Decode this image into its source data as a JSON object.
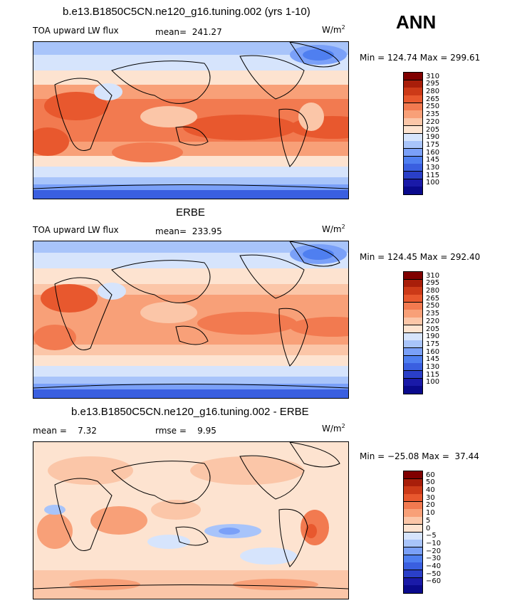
{
  "season": "ANN",
  "panels": [
    {
      "title": "b.e13.B1850C5CN.ne120_g16.tuning.002 (yrs 1-10)",
      "left_label": "TOA upward LW flux",
      "stat1": "mean=  241.27",
      "stat2": "",
      "units": "W/m",
      "units_sup": "2",
      "minmax": "Min = 124.74 Max = 299.61",
      "colorbar_ticks": [
        "310",
        "295",
        "280",
        "265",
        "250",
        "235",
        "220",
        "205",
        "190",
        "175",
        "160",
        "145",
        "130",
        "115",
        "100"
      ]
    },
    {
      "title": "ERBE",
      "left_label": "TOA upward LW flux",
      "stat1": "mean=  233.95",
      "stat2": "",
      "units": "W/m",
      "units_sup": "2",
      "minmax": "Min = 124.45 Max = 292.40",
      "colorbar_ticks": [
        "310",
        "295",
        "280",
        "265",
        "250",
        "235",
        "220",
        "205",
        "190",
        "175",
        "160",
        "145",
        "130",
        "115",
        "100"
      ]
    },
    {
      "title": "b.e13.B1850C5CN.ne120_g16.tuning.002 - ERBE",
      "left_label": "mean =    7.32",
      "stat1": "rmse =    9.95",
      "stat2": "",
      "units": "W/m",
      "units_sup": "2",
      "minmax": "Min = −25.08 Max =  37.44",
      "colorbar_ticks": [
        "60",
        "50",
        "40",
        "30",
        "20",
        "10",
        "5",
        "0",
        "−5",
        "−10",
        "−20",
        "−30",
        "−40",
        "−50",
        "−60"
      ]
    }
  ],
  "chart_data": [
    {
      "type": "heatmap",
      "title": "b.e13.B1850C5CN.ne120_g16.tuning.002 (yrs 1-10)",
      "variable": "TOA upward LW flux",
      "units": "W/m2",
      "mean": 241.27,
      "min": 124.74,
      "max": 299.61,
      "contour_levels": [
        100,
        115,
        130,
        145,
        160,
        175,
        190,
        205,
        220,
        235,
        250,
        265,
        280,
        295,
        310
      ]
    },
    {
      "type": "heatmap",
      "title": "ERBE",
      "variable": "TOA upward LW flux",
      "units": "W/m2",
      "mean": 233.95,
      "min": 124.45,
      "max": 292.4,
      "contour_levels": [
        100,
        115,
        130,
        145,
        160,
        175,
        190,
        205,
        220,
        235,
        250,
        265,
        280,
        295,
        310
      ]
    },
    {
      "type": "heatmap",
      "title": "b.e13.B1850C5CN.ne120_g16.tuning.002 - ERBE",
      "units": "W/m2",
      "mean": 7.32,
      "rmse": 9.95,
      "min": -25.08,
      "max": 37.44,
      "contour_levels": [
        -60,
        -50,
        -40,
        -30,
        -20,
        -10,
        -5,
        0,
        5,
        10,
        20,
        30,
        40,
        50,
        60
      ]
    }
  ],
  "colors": {
    "scale": [
      "#0a0a8c",
      "#1a1aa8",
      "#2a3fc8",
      "#3a5fe0",
      "#4f7ff0",
      "#7aa0f8",
      "#a8c4fa",
      "#d6e4fc",
      "#fde3d0",
      "#fbc6a8",
      "#f8a078",
      "#f27a50",
      "#e8582e",
      "#cc3a18",
      "#a81e0a",
      "#800000"
    ]
  }
}
